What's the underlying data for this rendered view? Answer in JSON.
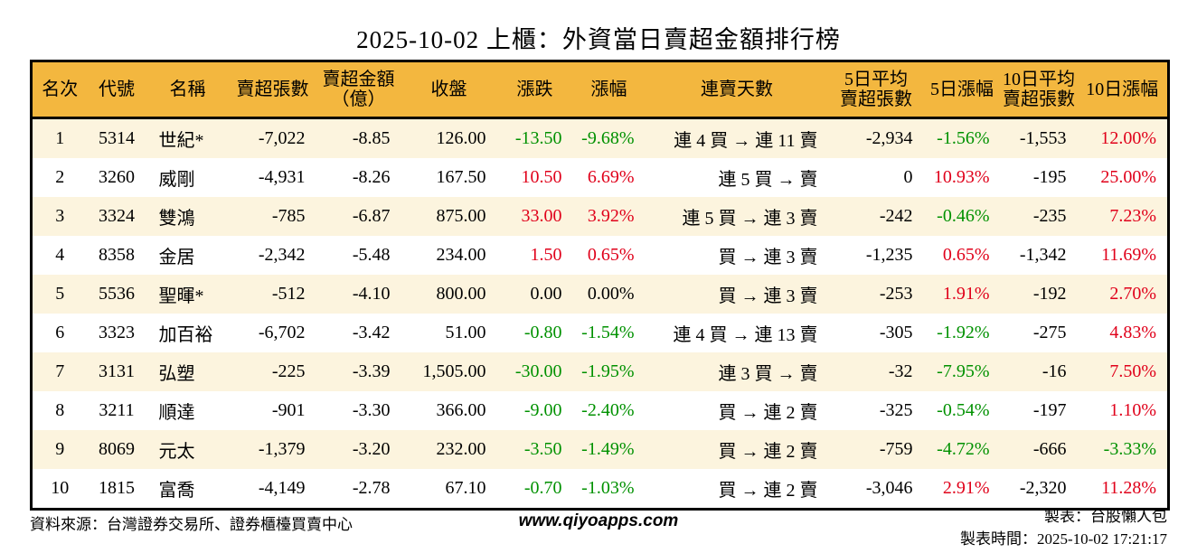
{
  "title": "2025-10-02 上櫃：外資當日賣超金額排行榜",
  "colors": {
    "up_red": "#e0001a",
    "down_green": "#009100",
    "header_bg": "#f3b73f",
    "row_alt_bg": "#fcf4de"
  },
  "table": {
    "headers": [
      {
        "lines": [
          "名次"
        ]
      },
      {
        "lines": [
          "代號"
        ]
      },
      {
        "lines": [
          "名稱"
        ]
      },
      {
        "lines": [
          "賣超張數"
        ]
      },
      {
        "lines": [
          "賣超金額",
          "（億）"
        ]
      },
      {
        "lines": [
          "收盤"
        ]
      },
      {
        "lines": [
          "漲跌"
        ]
      },
      {
        "lines": [
          "漲幅"
        ]
      },
      {
        "lines": [
          "連賣天數"
        ]
      },
      {
        "lines": [
          "5日平均",
          "賣超張數"
        ]
      },
      {
        "lines": [
          "5日漲幅"
        ]
      },
      {
        "lines": [
          "10日平均",
          "賣超張數"
        ]
      },
      {
        "lines": [
          "10日漲幅"
        ]
      }
    ],
    "rows": [
      {
        "cells": [
          "1",
          "5314",
          "世紀*",
          "-7,022",
          "-8.85",
          "126.00",
          "-13.50",
          "-9.68%",
          "連 4 買 → 連 11 賣",
          "-2,934",
          "-1.56%",
          "-1,553",
          "12.00%"
        ],
        "colors": [
          "",
          "",
          "",
          "",
          "",
          "",
          "g",
          "g",
          "",
          "",
          "g",
          "",
          "r"
        ]
      },
      {
        "cells": [
          "2",
          "3260",
          "威剛",
          "-4,931",
          "-8.26",
          "167.50",
          "10.50",
          "6.69%",
          "連 5 買 → 賣",
          "0",
          "10.93%",
          "-195",
          "25.00%"
        ],
        "colors": [
          "",
          "",
          "",
          "",
          "",
          "",
          "r",
          "r",
          "",
          "",
          "r",
          "",
          "r"
        ]
      },
      {
        "cells": [
          "3",
          "3324",
          "雙鴻",
          "-785",
          "-6.87",
          "875.00",
          "33.00",
          "3.92%",
          "連 5 買 → 連 3 賣",
          "-242",
          "-0.46%",
          "-235",
          "7.23%"
        ],
        "colors": [
          "",
          "",
          "",
          "",
          "",
          "",
          "r",
          "r",
          "",
          "",
          "g",
          "",
          "r"
        ]
      },
      {
        "cells": [
          "4",
          "8358",
          "金居",
          "-2,342",
          "-5.48",
          "234.00",
          "1.50",
          "0.65%",
          "買 → 連 3 賣",
          "-1,235",
          "0.65%",
          "-1,342",
          "11.69%"
        ],
        "colors": [
          "",
          "",
          "",
          "",
          "",
          "",
          "r",
          "r",
          "",
          "",
          "r",
          "",
          "r"
        ]
      },
      {
        "cells": [
          "5",
          "5536",
          "聖暉*",
          "-512",
          "-4.10",
          "800.00",
          "0.00",
          "0.00%",
          "買 → 連 3 賣",
          "-253",
          "1.91%",
          "-192",
          "2.70%"
        ],
        "colors": [
          "",
          "",
          "",
          "",
          "",
          "",
          "",
          "",
          "",
          "",
          "r",
          "",
          "r"
        ]
      },
      {
        "cells": [
          "6",
          "3323",
          "加百裕",
          "-6,702",
          "-3.42",
          "51.00",
          "-0.80",
          "-1.54%",
          "連 4 買 → 連 13 賣",
          "-305",
          "-1.92%",
          "-275",
          "4.83%"
        ],
        "colors": [
          "",
          "",
          "",
          "",
          "",
          "",
          "g",
          "g",
          "",
          "",
          "g",
          "",
          "r"
        ]
      },
      {
        "cells": [
          "7",
          "3131",
          "弘塑",
          "-225",
          "-3.39",
          "1,505.00",
          "-30.00",
          "-1.95%",
          "連 3 買 → 賣",
          "-32",
          "-7.95%",
          "-16",
          "7.50%"
        ],
        "colors": [
          "",
          "",
          "",
          "",
          "",
          "",
          "g",
          "g",
          "",
          "",
          "g",
          "",
          "r"
        ]
      },
      {
        "cells": [
          "8",
          "3211",
          "順達",
          "-901",
          "-3.30",
          "366.00",
          "-9.00",
          "-2.40%",
          "買 → 連 2 賣",
          "-325",
          "-0.54%",
          "-197",
          "1.10%"
        ],
        "colors": [
          "",
          "",
          "",
          "",
          "",
          "",
          "g",
          "g",
          "",
          "",
          "g",
          "",
          "r"
        ]
      },
      {
        "cells": [
          "9",
          "8069",
          "元太",
          "-1,379",
          "-3.20",
          "232.00",
          "-3.50",
          "-1.49%",
          "買 → 連 2 賣",
          "-759",
          "-4.72%",
          "-666",
          "-3.33%"
        ],
        "colors": [
          "",
          "",
          "",
          "",
          "",
          "",
          "g",
          "g",
          "",
          "",
          "g",
          "",
          "g"
        ]
      },
      {
        "cells": [
          "10",
          "1815",
          "富喬",
          "-4,149",
          "-2.78",
          "67.10",
          "-0.70",
          "-1.03%",
          "買 → 連 2 賣",
          "-3,046",
          "2.91%",
          "-2,320",
          "11.28%"
        ],
        "colors": [
          "",
          "",
          "",
          "",
          "",
          "",
          "g",
          "g",
          "",
          "",
          "r",
          "",
          "r"
        ]
      }
    ]
  },
  "footer": {
    "source": "資料來源：台灣證券交易所、證券櫃檯買賣中心",
    "website": "www.qiyoapps.com",
    "maker": "製表：台股懶人包",
    "made_time": "製表時間：2025-10-02 17:21:17"
  }
}
